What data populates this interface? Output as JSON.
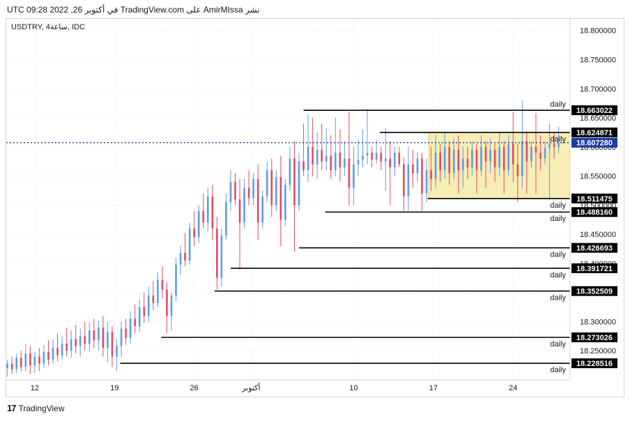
{
  "header": {
    "text": "نشر AmirMIssa على TradingView.com في أكتوبر 26, 2022 09:28 UTC"
  },
  "symbol": {
    "text": "USDTRY, 4ساعة, IDC"
  },
  "footer": {
    "logo_text": "TradingView",
    "logo_mark": "17"
  },
  "chart_data": {
    "type": "candlestick",
    "ylim": [
      18.2,
      18.82
    ],
    "y_ticks": [
      18.25,
      18.3,
      18.35,
      18.4,
      18.45,
      18.5,
      18.55,
      18.6,
      18.65,
      18.7,
      18.75,
      18.8
    ],
    "y_tick_labels": [
      "18.250000",
      "18.300000",
      "18.350000",
      "18.400000",
      "18.450000",
      "18.500000",
      "18.550000",
      "18.600000",
      "18.650000",
      "18.700000",
      "18.750000",
      "18.800000"
    ],
    "x_ticks": [
      {
        "label": "12",
        "day": 12
      },
      {
        "label": "19",
        "day": 19
      },
      {
        "label": "26",
        "day": 26
      },
      {
        "label": "أكتوبر",
        "day": 31
      },
      {
        "label": "10",
        "day": 40
      },
      {
        "label": "17",
        "day": 47
      },
      {
        "label": "24",
        "day": 54
      }
    ],
    "x_range_days": [
      9.5,
      59
    ],
    "current_price": {
      "value": 18.60728,
      "label": "18.607280",
      "color": "#1e3a9e"
    },
    "levels": [
      {
        "value": 18.663022,
        "label": "18.663022",
        "tag": "daily",
        "from_day": 35.6,
        "tag_pos": "above"
      },
      {
        "value": 18.624871,
        "label": "18.624871",
        "tag": "daily",
        "from_day": 42.3,
        "tag_pos": "below"
      },
      {
        "value": 18.511475,
        "label": "18.511475",
        "tag": "daily",
        "from_day": 46.5,
        "tag_pos": "below"
      },
      {
        "value": 18.48816,
        "label": "18.488160",
        "tag": "daily",
        "from_day": 37.5,
        "tag_pos": "below"
      },
      {
        "value": 18.426693,
        "label": "18.426693",
        "tag": "daily",
        "from_day": 35.2,
        "tag_pos": "below"
      },
      {
        "value": 18.391721,
        "label": "18.391721",
        "tag": "daily",
        "from_day": 29.2,
        "tag_pos": "below"
      },
      {
        "value": 18.352509,
        "label": "18.352509",
        "tag": "daily",
        "from_day": 27.8,
        "tag_pos": "below"
      },
      {
        "value": 18.273026,
        "label": "18.273026",
        "tag": "daily",
        "from_day": 23.1,
        "tag_pos": "below"
      },
      {
        "value": 18.228516,
        "label": "18.228516",
        "tag": "daily",
        "from_day": 19.5,
        "tag_pos": "below"
      }
    ],
    "range_box": {
      "from_day": 46.6,
      "to_day": 59,
      "top": 18.624871,
      "bottom": 18.511475,
      "fill": "#f5eba8",
      "stroke": "#e6c84a"
    },
    "up_color": "#5b9cf0",
    "down_color": "#e8475f",
    "candles": [
      {
        "d": 9.6,
        "o": 18.22,
        "h": 18.235,
        "l": 18.205,
        "c": 18.228
      },
      {
        "d": 10.0,
        "o": 18.228,
        "h": 18.24,
        "l": 18.21,
        "c": 18.218
      },
      {
        "d": 10.4,
        "o": 18.218,
        "h": 18.245,
        "l": 18.212,
        "c": 18.238
      },
      {
        "d": 10.8,
        "o": 18.238,
        "h": 18.25,
        "l": 18.215,
        "c": 18.222
      },
      {
        "d": 11.2,
        "o": 18.222,
        "h": 18.262,
        "l": 18.215,
        "c": 18.245
      },
      {
        "d": 11.6,
        "o": 18.245,
        "h": 18.258,
        "l": 18.21,
        "c": 18.225
      },
      {
        "d": 12.0,
        "o": 18.225,
        "h": 18.248,
        "l": 18.212,
        "c": 18.24
      },
      {
        "d": 12.4,
        "o": 18.24,
        "h": 18.255,
        "l": 18.215,
        "c": 18.228
      },
      {
        "d": 12.8,
        "o": 18.228,
        "h": 18.26,
        "l": 18.22,
        "c": 18.248
      },
      {
        "d": 13.2,
        "o": 18.248,
        "h": 18.268,
        "l": 18.225,
        "c": 18.235
      },
      {
        "d": 13.6,
        "o": 18.235,
        "h": 18.27,
        "l": 18.228,
        "c": 18.255
      },
      {
        "d": 14.0,
        "o": 18.255,
        "h": 18.28,
        "l": 18.232,
        "c": 18.242
      },
      {
        "d": 14.4,
        "o": 18.242,
        "h": 18.275,
        "l": 18.235,
        "c": 18.262
      },
      {
        "d": 14.8,
        "o": 18.262,
        "h": 18.29,
        "l": 18.24,
        "c": 18.25
      },
      {
        "d": 15.2,
        "o": 18.25,
        "h": 18.285,
        "l": 18.238,
        "c": 18.27
      },
      {
        "d": 15.6,
        "o": 18.27,
        "h": 18.295,
        "l": 18.245,
        "c": 18.258
      },
      {
        "d": 16.0,
        "o": 18.258,
        "h": 18.288,
        "l": 18.24,
        "c": 18.275
      },
      {
        "d": 16.4,
        "o": 18.275,
        "h": 18.3,
        "l": 18.25,
        "c": 18.262
      },
      {
        "d": 16.8,
        "o": 18.262,
        "h": 18.298,
        "l": 18.248,
        "c": 18.285
      },
      {
        "d": 17.2,
        "o": 18.285,
        "h": 18.305,
        "l": 18.255,
        "c": 18.268
      },
      {
        "d": 17.6,
        "o": 18.268,
        "h": 18.302,
        "l": 18.25,
        "c": 18.29
      },
      {
        "d": 18.0,
        "o": 18.29,
        "h": 18.31,
        "l": 18.24,
        "c": 18.255
      },
      {
        "d": 18.4,
        "o": 18.255,
        "h": 18.3,
        "l": 18.23,
        "c": 18.282
      },
      {
        "d": 18.8,
        "o": 18.282,
        "h": 18.292,
        "l": 18.222,
        "c": 18.24
      },
      {
        "d": 19.2,
        "o": 18.24,
        "h": 18.27,
        "l": 18.215,
        "c": 18.258
      },
      {
        "d": 19.6,
        "o": 18.258,
        "h": 18.3,
        "l": 18.24,
        "c": 18.288
      },
      {
        "d": 20.0,
        "o": 18.288,
        "h": 18.305,
        "l": 18.26,
        "c": 18.272
      },
      {
        "d": 20.4,
        "o": 18.272,
        "h": 18.318,
        "l": 18.262,
        "c": 18.305
      },
      {
        "d": 20.8,
        "o": 18.305,
        "h": 18.33,
        "l": 18.28,
        "c": 18.292
      },
      {
        "d": 21.2,
        "o": 18.292,
        "h": 18.338,
        "l": 18.282,
        "c": 18.325
      },
      {
        "d": 21.6,
        "o": 18.325,
        "h": 18.35,
        "l": 18.298,
        "c": 18.31
      },
      {
        "d": 22.0,
        "o": 18.31,
        "h": 18.36,
        "l": 18.3,
        "c": 18.345
      },
      {
        "d": 22.4,
        "o": 18.345,
        "h": 18.37,
        "l": 18.32,
        "c": 18.332
      },
      {
        "d": 22.8,
        "o": 18.332,
        "h": 18.385,
        "l": 18.325,
        "c": 18.372
      },
      {
        "d": 23.2,
        "o": 18.372,
        "h": 18.395,
        "l": 18.34,
        "c": 18.355
      },
      {
        "d": 23.6,
        "o": 18.355,
        "h": 18.368,
        "l": 18.28,
        "c": 18.31
      },
      {
        "d": 24.0,
        "o": 18.31,
        "h": 18.35,
        "l": 18.285,
        "c": 18.345
      },
      {
        "d": 24.4,
        "o": 18.345,
        "h": 18.41,
        "l": 18.335,
        "c": 18.398
      },
      {
        "d": 24.8,
        "o": 18.398,
        "h": 18.43,
        "l": 18.38,
        "c": 18.418
      },
      {
        "d": 25.2,
        "o": 18.418,
        "h": 18.452,
        "l": 18.395,
        "c": 18.405
      },
      {
        "d": 25.6,
        "o": 18.405,
        "h": 18.47,
        "l": 18.398,
        "c": 18.46
      },
      {
        "d": 26.0,
        "o": 18.46,
        "h": 18.49,
        "l": 18.43,
        "c": 18.445
      },
      {
        "d": 26.4,
        "o": 18.445,
        "h": 18.5,
        "l": 18.435,
        "c": 18.49
      },
      {
        "d": 26.8,
        "o": 18.49,
        "h": 18.52,
        "l": 18.46,
        "c": 18.47
      },
      {
        "d": 27.2,
        "o": 18.47,
        "h": 18.53,
        "l": 18.455,
        "c": 18.515
      },
      {
        "d": 27.6,
        "o": 18.515,
        "h": 18.535,
        "l": 18.44,
        "c": 18.46
      },
      {
        "d": 28.0,
        "o": 18.46,
        "h": 18.48,
        "l": 18.355,
        "c": 18.375
      },
      {
        "d": 28.4,
        "o": 18.375,
        "h": 18.46,
        "l": 18.36,
        "c": 18.448
      },
      {
        "d": 28.8,
        "o": 18.448,
        "h": 18.52,
        "l": 18.44,
        "c": 18.505
      },
      {
        "d": 29.2,
        "o": 18.505,
        "h": 18.56,
        "l": 18.49,
        "c": 18.54
      },
      {
        "d": 29.6,
        "o": 18.54,
        "h": 18.555,
        "l": 18.5,
        "c": 18.51
      },
      {
        "d": 30.0,
        "o": 18.51,
        "h": 18.545,
        "l": 18.39,
        "c": 18.47
      },
      {
        "d": 30.4,
        "o": 18.47,
        "h": 18.545,
        "l": 18.46,
        "c": 18.53
      },
      {
        "d": 30.8,
        "o": 18.53,
        "h": 18.56,
        "l": 18.5,
        "c": 18.512
      },
      {
        "d": 31.2,
        "o": 18.512,
        "h": 18.555,
        "l": 18.5,
        "c": 18.545
      },
      {
        "d": 31.6,
        "o": 18.545,
        "h": 18.57,
        "l": 18.44,
        "c": 18.47
      },
      {
        "d": 32.0,
        "o": 18.47,
        "h": 18.525,
        "l": 18.46,
        "c": 18.515
      },
      {
        "d": 32.4,
        "o": 18.515,
        "h": 18.575,
        "l": 18.505,
        "c": 18.56
      },
      {
        "d": 32.8,
        "o": 18.56,
        "h": 18.58,
        "l": 18.48,
        "c": 18.5
      },
      {
        "d": 33.2,
        "o": 18.5,
        "h": 18.56,
        "l": 18.49,
        "c": 18.548
      },
      {
        "d": 33.6,
        "o": 18.548,
        "h": 18.585,
        "l": 18.43,
        "c": 18.475
      },
      {
        "d": 34.0,
        "o": 18.475,
        "h": 18.545,
        "l": 18.465,
        "c": 18.535
      },
      {
        "d": 34.4,
        "o": 18.535,
        "h": 18.6,
        "l": 18.525,
        "c": 18.58
      },
      {
        "d": 34.8,
        "o": 18.58,
        "h": 18.61,
        "l": 18.42,
        "c": 18.5
      },
      {
        "d": 35.2,
        "o": 18.5,
        "h": 18.59,
        "l": 18.49,
        "c": 18.575
      },
      {
        "d": 35.6,
        "o": 18.575,
        "h": 18.64,
        "l": 18.55,
        "c": 18.56
      },
      {
        "d": 36.0,
        "o": 18.56,
        "h": 18.655,
        "l": 18.54,
        "c": 18.6
      },
      {
        "d": 36.4,
        "o": 18.6,
        "h": 18.65,
        "l": 18.55,
        "c": 18.57
      },
      {
        "d": 36.8,
        "o": 18.57,
        "h": 18.625,
        "l": 18.545,
        "c": 18.595
      },
      {
        "d": 37.2,
        "o": 18.595,
        "h": 18.64,
        "l": 18.56,
        "c": 18.575
      },
      {
        "d": 37.6,
        "o": 18.575,
        "h": 18.632,
        "l": 18.56,
        "c": 18.585
      },
      {
        "d": 38.0,
        "o": 18.585,
        "h": 18.62,
        "l": 18.545,
        "c": 18.56
      },
      {
        "d": 38.4,
        "o": 18.56,
        "h": 18.65,
        "l": 18.55,
        "c": 18.59
      },
      {
        "d": 38.8,
        "o": 18.59,
        "h": 18.63,
        "l": 18.54,
        "c": 18.565
      },
      {
        "d": 39.2,
        "o": 18.565,
        "h": 18.61,
        "l": 18.55,
        "c": 18.58
      },
      {
        "d": 39.6,
        "o": 18.58,
        "h": 18.66,
        "l": 18.5,
        "c": 18.53
      },
      {
        "d": 40.0,
        "o": 18.53,
        "h": 18.6,
        "l": 18.5,
        "c": 18.57
      },
      {
        "d": 40.4,
        "o": 18.57,
        "h": 18.612,
        "l": 18.55,
        "c": 18.578
      },
      {
        "d": 40.8,
        "o": 18.578,
        "h": 18.63,
        "l": 18.565,
        "c": 18.585
      },
      {
        "d": 41.2,
        "o": 18.585,
        "h": 18.665,
        "l": 18.57,
        "c": 18.59
      },
      {
        "d": 41.6,
        "o": 18.59,
        "h": 18.6,
        "l": 18.565,
        "c": 18.578
      },
      {
        "d": 42.0,
        "o": 18.578,
        "h": 18.612,
        "l": 18.572,
        "c": 18.59
      },
      {
        "d": 42.4,
        "o": 18.59,
        "h": 18.6,
        "l": 18.56,
        "c": 18.575
      },
      {
        "d": 42.8,
        "o": 18.575,
        "h": 18.632,
        "l": 18.525,
        "c": 18.58
      },
      {
        "d": 43.2,
        "o": 18.58,
        "h": 18.61,
        "l": 18.5,
        "c": 18.565
      },
      {
        "d": 43.6,
        "o": 18.565,
        "h": 18.6,
        "l": 18.55,
        "c": 18.59
      },
      {
        "d": 44.0,
        "o": 18.59,
        "h": 18.6,
        "l": 18.565,
        "c": 18.57
      },
      {
        "d": 44.4,
        "o": 18.57,
        "h": 18.582,
        "l": 18.49,
        "c": 18.515
      },
      {
        "d": 44.8,
        "o": 18.515,
        "h": 18.6,
        "l": 18.49,
        "c": 18.57
      },
      {
        "d": 45.2,
        "o": 18.57,
        "h": 18.595,
        "l": 18.53,
        "c": 18.555
      },
      {
        "d": 45.6,
        "o": 18.555,
        "h": 18.592,
        "l": 18.54,
        "c": 18.58
      },
      {
        "d": 46.0,
        "o": 18.58,
        "h": 18.59,
        "l": 18.49,
        "c": 18.52
      },
      {
        "d": 46.4,
        "o": 18.52,
        "h": 18.58,
        "l": 18.505,
        "c": 18.56
      },
      {
        "d": 46.8,
        "o": 18.56,
        "h": 18.6,
        "l": 18.525,
        "c": 18.545
      },
      {
        "d": 47.2,
        "o": 18.545,
        "h": 18.62,
        "l": 18.53,
        "c": 18.59
      },
      {
        "d": 47.6,
        "o": 18.59,
        "h": 18.605,
        "l": 18.54,
        "c": 18.56
      },
      {
        "d": 48.0,
        "o": 18.56,
        "h": 18.625,
        "l": 18.545,
        "c": 18.6
      },
      {
        "d": 48.4,
        "o": 18.6,
        "h": 18.61,
        "l": 18.535,
        "c": 18.555
      },
      {
        "d": 48.8,
        "o": 18.555,
        "h": 18.615,
        "l": 18.545,
        "c": 18.595
      },
      {
        "d": 49.2,
        "o": 18.595,
        "h": 18.62,
        "l": 18.52,
        "c": 18.56
      },
      {
        "d": 49.6,
        "o": 18.56,
        "h": 18.6,
        "l": 18.53,
        "c": 18.58
      },
      {
        "d": 50.0,
        "o": 18.58,
        "h": 18.6,
        "l": 18.545,
        "c": 18.565
      },
      {
        "d": 50.4,
        "o": 18.565,
        "h": 18.61,
        "l": 18.55,
        "c": 18.595
      },
      {
        "d": 50.8,
        "o": 18.595,
        "h": 18.605,
        "l": 18.52,
        "c": 18.56
      },
      {
        "d": 51.2,
        "o": 18.56,
        "h": 18.62,
        "l": 18.55,
        "c": 18.6
      },
      {
        "d": 51.6,
        "o": 18.6,
        "h": 18.61,
        "l": 18.53,
        "c": 18.575
      },
      {
        "d": 52.0,
        "o": 18.575,
        "h": 18.615,
        "l": 18.555,
        "c": 18.595
      },
      {
        "d": 52.4,
        "o": 18.595,
        "h": 18.605,
        "l": 18.54,
        "c": 18.565
      },
      {
        "d": 52.8,
        "o": 18.565,
        "h": 18.625,
        "l": 18.55,
        "c": 18.6
      },
      {
        "d": 53.2,
        "o": 18.6,
        "h": 18.61,
        "l": 18.52,
        "c": 18.56
      },
      {
        "d": 53.6,
        "o": 18.56,
        "h": 18.62,
        "l": 18.55,
        "c": 18.605
      },
      {
        "d": 54.0,
        "o": 18.605,
        "h": 18.66,
        "l": 18.54,
        "c": 18.57
      },
      {
        "d": 54.4,
        "o": 18.57,
        "h": 18.605,
        "l": 18.505,
        "c": 18.55
      },
      {
        "d": 54.8,
        "o": 18.55,
        "h": 18.68,
        "l": 18.53,
        "c": 18.61
      },
      {
        "d": 55.2,
        "o": 18.61,
        "h": 18.625,
        "l": 18.52,
        "c": 18.575
      },
      {
        "d": 55.6,
        "o": 18.575,
        "h": 18.61,
        "l": 18.565,
        "c": 18.6
      },
      {
        "d": 56.0,
        "o": 18.6,
        "h": 18.658,
        "l": 18.52,
        "c": 18.59
      },
      {
        "d": 56.4,
        "o": 18.59,
        "h": 18.62,
        "l": 18.56,
        "c": 18.58
      },
      {
        "d": 56.8,
        "o": 18.58,
        "h": 18.61,
        "l": 18.57,
        "c": 18.598
      },
      {
        "d": 57.2,
        "o": 18.598,
        "h": 18.64,
        "l": 18.51,
        "c": 18.605
      },
      {
        "d": 57.6,
        "o": 18.605,
        "h": 18.625,
        "l": 18.58,
        "c": 18.6
      },
      {
        "d": 58.0,
        "o": 18.6,
        "h": 18.635,
        "l": 18.59,
        "c": 18.607
      }
    ]
  }
}
